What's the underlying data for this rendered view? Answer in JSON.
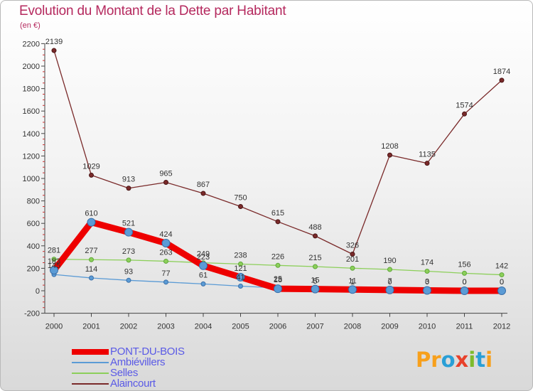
{
  "chart_data": {
    "type": "line",
    "title": "Evolution du Montant de la Dette par Habitant",
    "subtitle": "(en €)",
    "categories": [
      "2000",
      "2001",
      "2002",
      "2003",
      "2004",
      "2005",
      "2006",
      "2007",
      "2008",
      "2009",
      "2010",
      "2011",
      "2012"
    ],
    "ylim": [
      -200,
      2200
    ],
    "yticks": [
      "-200",
      "0",
      "200",
      "400",
      "600",
      "800",
      "1000",
      "1200",
      "1400",
      "1600",
      "1800",
      "2000",
      "2200"
    ],
    "grid": false,
    "legend_position": "bottom-left",
    "series": [
      {
        "name": "PONT-DU-BOIS",
        "color": "#ee0000",
        "values": [
          183,
          610,
          521,
          424,
          223,
          121,
          18,
          15,
          11,
          7,
          3,
          0,
          0
        ],
        "labels": [
          "183",
          "610",
          "521",
          "424",
          "223",
          "121",
          "18",
          "15",
          "11",
          "7",
          "3",
          "0",
          "0"
        ]
      },
      {
        "name": "Ambiévillers",
        "color": "#5b9bd5",
        "values": [
          145,
          114,
          93,
          77,
          61,
          41,
          25,
          5,
          1,
          0,
          0,
          0,
          0
        ],
        "labels": [
          "145",
          "114",
          "93",
          "77",
          "61",
          "41",
          "25",
          "5",
          "1",
          "0",
          "0",
          "0",
          "0"
        ]
      },
      {
        "name": "Selles",
        "color": "#8ccf5a",
        "values": [
          281,
          277,
          273,
          263,
          249,
          238,
          226,
          215,
          201,
          190,
          174,
          156,
          142
        ],
        "labels": [
          "281",
          "277",
          "273",
          "263",
          "249",
          "238",
          "226",
          "215",
          "201",
          "190",
          "174",
          "156",
          "142"
        ]
      },
      {
        "name": "Alaincourt",
        "color": "#7a2a2a",
        "values": [
          2139,
          1029,
          913,
          965,
          867,
          750,
          615,
          488,
          326,
          1208,
          1135,
          1574,
          1874
        ],
        "labels": [
          "2139",
          "1029",
          "913",
          "965",
          "867",
          "750",
          "615",
          "488",
          "326",
          "1208",
          "1135",
          "1574",
          "1874"
        ]
      }
    ]
  },
  "logo": {
    "letters": [
      {
        "ch": "P",
        "color": "#f7a01c"
      },
      {
        "ch": "r",
        "color": "#f7a01c"
      },
      {
        "ch": "o",
        "color": "#2a9fd6"
      },
      {
        "ch": "x",
        "color": "#e8412b"
      },
      {
        "ch": "i",
        "color": "#7dbb2c"
      },
      {
        "ch": "t",
        "color": "#2a9fd6"
      },
      {
        "ch": "i",
        "color": "#f7a01c"
      }
    ]
  }
}
